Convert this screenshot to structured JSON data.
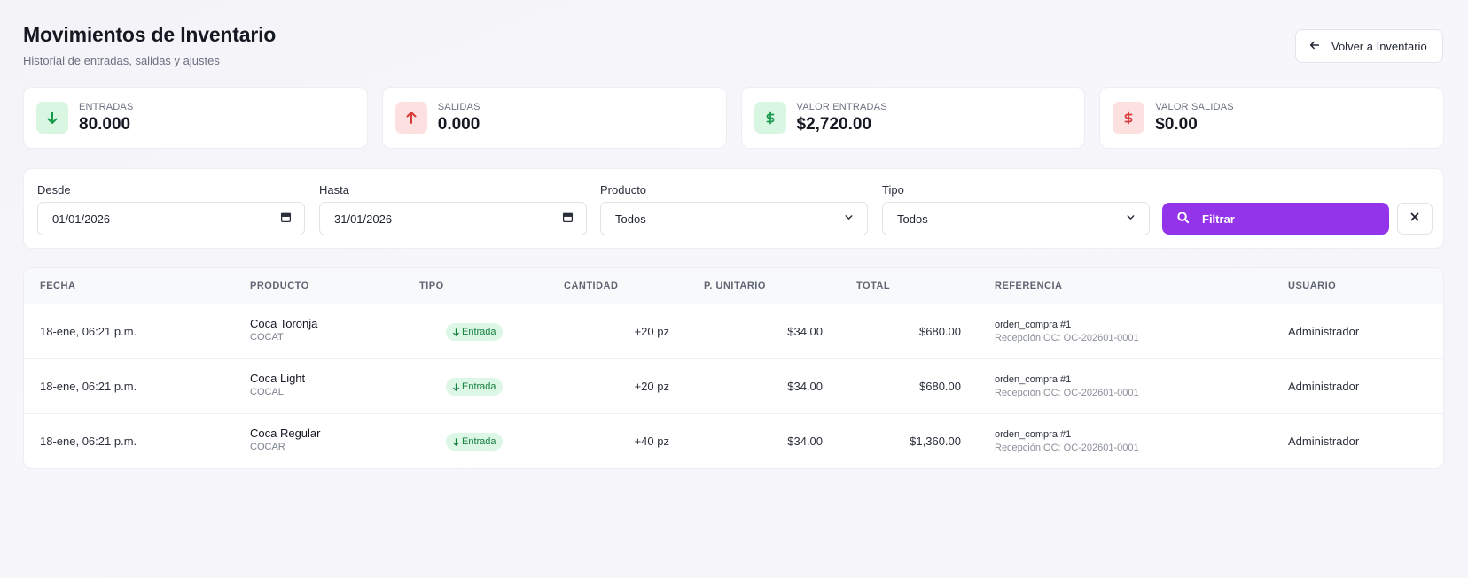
{
  "header": {
    "title": "Movimientos de Inventario",
    "subtitle": "Historial de entradas, salidas y ajustes",
    "back_label": "Volver a Inventario"
  },
  "stats": [
    {
      "label": "ENTRADAS",
      "value": "80.000",
      "icon": "arrow-down-icon",
      "tone": "green"
    },
    {
      "label": "SALIDAS",
      "value": "0.000",
      "icon": "arrow-up-icon",
      "tone": "red"
    },
    {
      "label": "VALOR ENTRADAS",
      "value": "$2,720.00",
      "icon": "dollar-icon",
      "tone": "green"
    },
    {
      "label": "VALOR SALIDAS",
      "value": "$0.00",
      "icon": "dollar-icon",
      "tone": "red"
    }
  ],
  "filters": {
    "desde_label": "Desde",
    "desde_value": "01/01/2026",
    "hasta_label": "Hasta",
    "hasta_value": "31/01/2026",
    "producto_label": "Producto",
    "producto_value": "Todos",
    "tipo_label": "Tipo",
    "tipo_value": "Todos",
    "filter_label": "Filtrar"
  },
  "table": {
    "headers": [
      "FECHA",
      "PRODUCTO",
      "TIPO",
      "CANTIDAD",
      "P. UNITARIO",
      "TOTAL",
      "REFERENCIA",
      "USUARIO"
    ],
    "rows": [
      {
        "fecha": "18-ene, 06:21 p.m.",
        "producto": "Coca Toronja",
        "codigo": "COCAT",
        "tipo": "Entrada",
        "cantidad": "+20 pz",
        "unitario": "$34.00",
        "total": "$680.00",
        "ref": "orden_compra #1",
        "ref_sub": "Recepción OC: OC-202601-0001",
        "usuario": "Administrador"
      },
      {
        "fecha": "18-ene, 06:21 p.m.",
        "producto": "Coca Light",
        "codigo": "COCAL",
        "tipo": "Entrada",
        "cantidad": "+20 pz",
        "unitario": "$34.00",
        "total": "$680.00",
        "ref": "orden_compra #1",
        "ref_sub": "Recepción OC: OC-202601-0001",
        "usuario": "Administrador"
      },
      {
        "fecha": "18-ene, 06:21 p.m.",
        "producto": "Coca Regular",
        "codigo": "COCAR",
        "tipo": "Entrada",
        "cantidad": "+40 pz",
        "unitario": "$34.00",
        "total": "$1,360.00",
        "ref": "orden_compra #1",
        "ref_sub": "Recepción OC: OC-202601-0001",
        "usuario": "Administrador"
      }
    ]
  },
  "colors": {
    "accent": "#9333ea",
    "green": "#17994a",
    "red": "#d63a3a"
  }
}
